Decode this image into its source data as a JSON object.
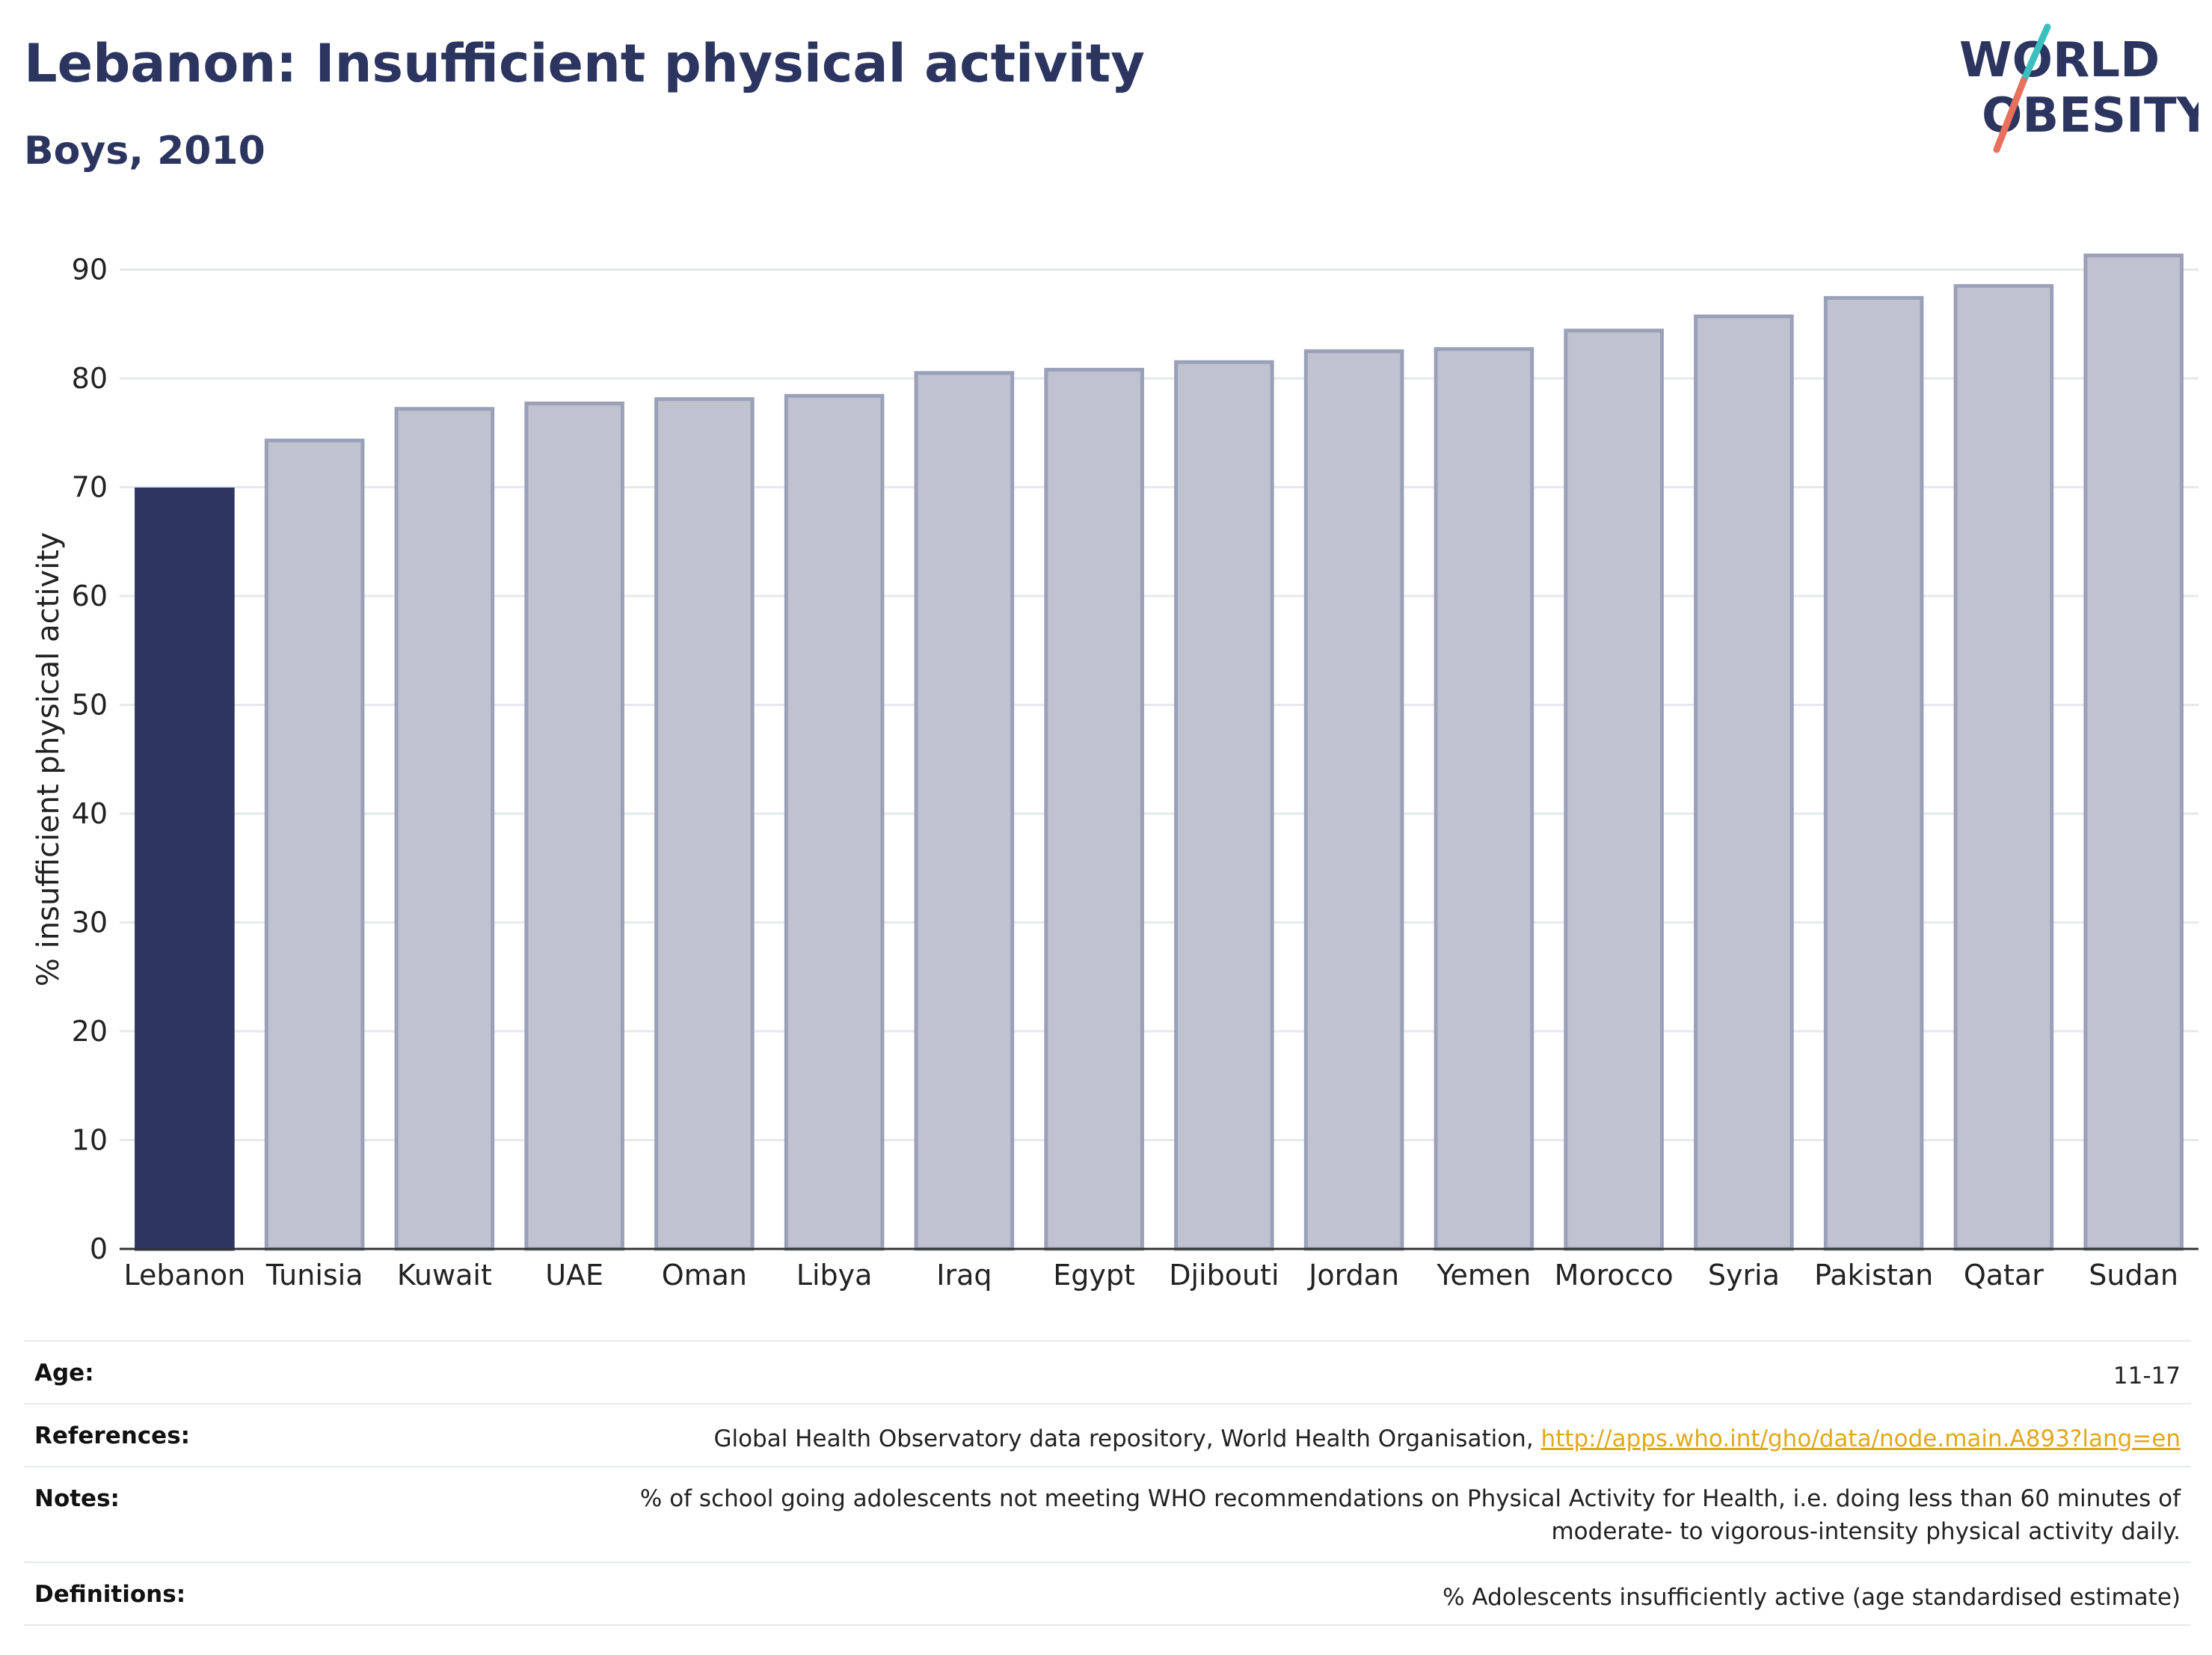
{
  "header": {
    "title": "Lebanon: Insufficient physical activity",
    "subtitle": "Boys, 2010"
  },
  "logo": {
    "line1": "WORLD",
    "line2": "OBESITY",
    "colors": {
      "text": "#2b3560",
      "slash_teal": "#3bbfbf",
      "slash_coral": "#e8705c"
    }
  },
  "chart_data": {
    "type": "bar",
    "ylabel": "% insufficient physical activity",
    "ylim": [
      0,
      92
    ],
    "yticks": [
      0,
      10,
      20,
      30,
      40,
      50,
      60,
      70,
      80,
      90
    ],
    "grid": true,
    "categories": [
      "Lebanon",
      "Tunisia",
      "Kuwait",
      "UAE",
      "Oman",
      "Libya",
      "Iraq",
      "Egypt",
      "Djibouti",
      "Jordan",
      "Yemen",
      "Morocco",
      "Syria",
      "Pakistan",
      "Qatar",
      "Sudan"
    ],
    "values": [
      69.8,
      74.3,
      77.2,
      77.7,
      78.1,
      78.4,
      80.5,
      80.8,
      81.5,
      82.5,
      82.7,
      84.4,
      85.7,
      87.4,
      88.5,
      91.3
    ],
    "highlight": "Lebanon",
    "colors": {
      "highlight": "#2b3560",
      "other": "#bfc2cf",
      "other_outline": "#9aa0b8"
    }
  },
  "info": {
    "age_label": "Age:",
    "age_value": "11-17",
    "references_label": "References:",
    "references_text": "Global Health Observatory data repository, World Health Organisation, ",
    "references_link": "http://apps.who.int/gho/data/node.main.A893?lang=en",
    "notes_label": "Notes:",
    "notes_value": "% of school going adolescents not meeting WHO recommendations on Physical Activity for Health, i.e. doing less than 60 minutes of moderate- to vigorous-intensity physical activity daily.",
    "definitions_label": "Definitions:",
    "definitions_value": "% Adolescents insufficiently active (age standardised estimate)"
  }
}
